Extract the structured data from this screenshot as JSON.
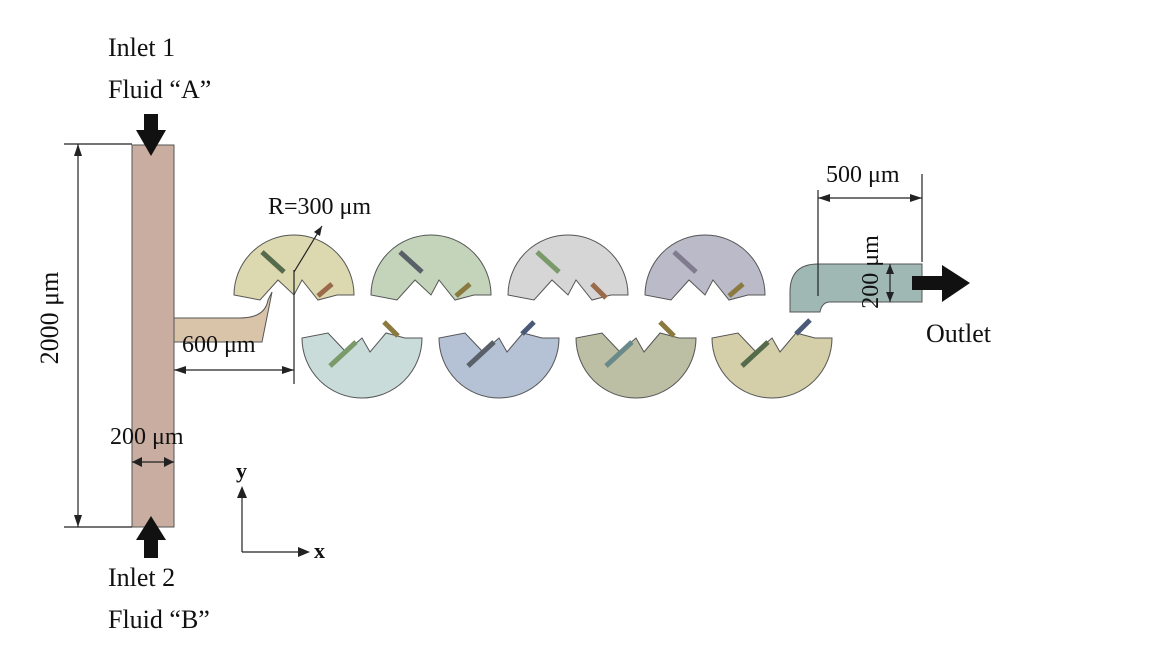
{
  "labels": {
    "inlet1_line1": "Inlet 1",
    "inlet1_line2": "Fluid “A”",
    "inlet2_line1": "Inlet 2",
    "inlet2_line2": "Fluid “B”",
    "outlet": "Outlet",
    "radius": "R=300 μm",
    "length_2000": "2000 μm",
    "width_200_inlet": "200 μm",
    "length_600": "600 μm",
    "length_500": "500 μm",
    "width_200_outlet": "200 μm",
    "axis_x": "x",
    "axis_y": "y"
  },
  "colors": {
    "inlet_channel": "#c8ada0",
    "inlet_branch": "#d9c4aa",
    "outlet_channel": "#9fb8b4",
    "arrow": "#111111",
    "arc_top": [
      "#d8d4a6",
      "#bccfb2",
      "#d2d2d2",
      "#b4b2c2"
    ],
    "arc_bottom": [
      "#c3d8d6",
      "#adbbd2",
      "#b6b89a",
      "#cfca9e"
    ],
    "baffle": [
      "#556b4c",
      "#5a6068",
      "#7b9a6a",
      "#807b8f",
      "#9a6a4a",
      "#8a7a40",
      "#4a5a78",
      "#6a8a8a"
    ]
  }
}
